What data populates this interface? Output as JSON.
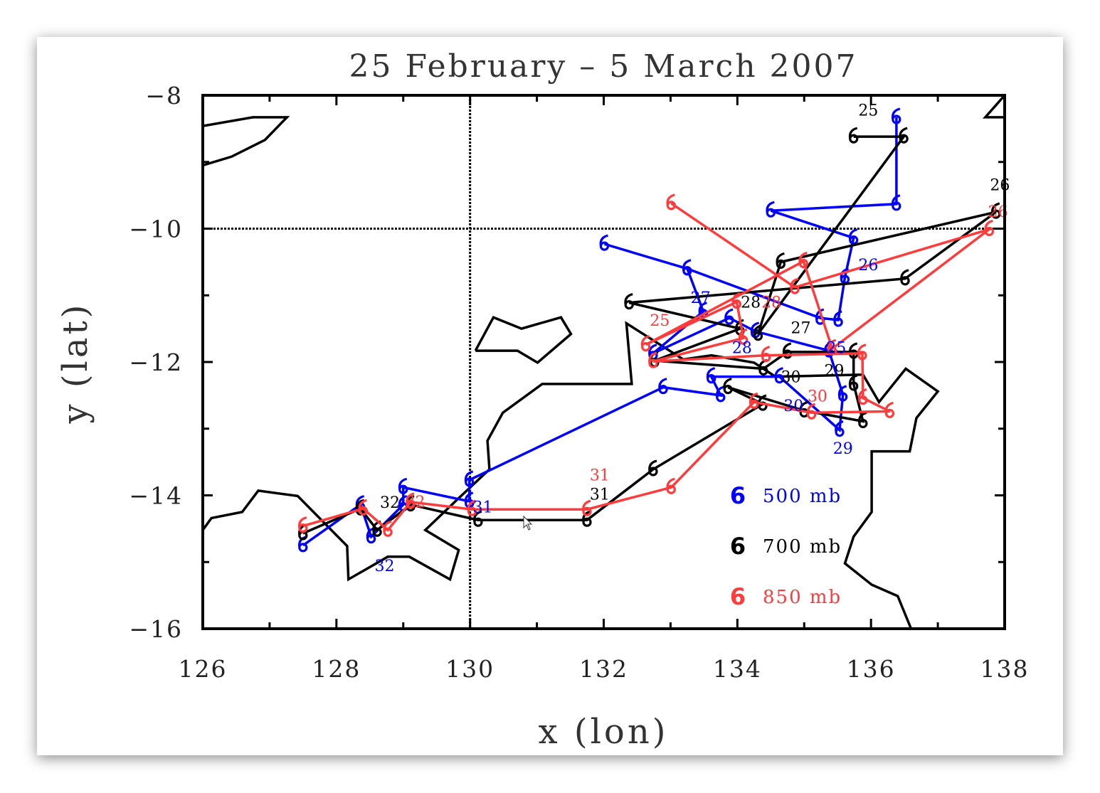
{
  "chart_data": {
    "type": "line",
    "title": "25 February – 5 March 2007",
    "xlabel": "x (lon)",
    "ylabel": "y (lat)",
    "xlim": [
      126,
      138
    ],
    "ylim": [
      -16,
      -8
    ],
    "xticks": [
      126,
      128,
      130,
      132,
      134,
      136,
      138
    ],
    "yticks": [
      -8,
      -10,
      -12,
      -14,
      -16
    ],
    "xtick_labels": [
      "126",
      "128",
      "130",
      "132",
      "134",
      "136",
      "138"
    ],
    "ytick_labels": [
      "−8",
      "−10",
      "−12",
      "−14",
      "−16"
    ],
    "reference_lines": {
      "lon": 130,
      "lat": -10
    },
    "legend_position": "bottom-right",
    "marker_glyph": "6",
    "series": [
      {
        "name": "500 mb",
        "color": "#0000ff",
        "points": [
          [
            136.38,
            -8.33
          ],
          [
            136.38,
            -9.63
          ],
          [
            134.5,
            -9.73
          ],
          [
            135.74,
            -10.14
          ],
          [
            135.61,
            -10.73
          ],
          [
            135.51,
            -11.37
          ],
          [
            135.24,
            -11.34
          ],
          [
            133.25,
            -10.6
          ],
          [
            132.01,
            -10.23
          ],
          [
            133.25,
            -10.6
          ],
          [
            133.49,
            -11.24
          ],
          [
            132.74,
            -11.87
          ],
          [
            133.88,
            -11.34
          ],
          [
            134.27,
            -11.54
          ],
          [
            135.37,
            -11.83
          ],
          [
            135.58,
            -12.49
          ],
          [
            135.53,
            -13.02
          ],
          [
            134.63,
            -12.22
          ],
          [
            133.61,
            -12.22
          ],
          [
            133.75,
            -12.5
          ],
          [
            132.89,
            -12.38
          ],
          [
            129.99,
            -13.77
          ],
          [
            129.99,
            -14.09
          ],
          [
            129.0,
            -13.88
          ],
          [
            129.0,
            -14.14
          ],
          [
            128.52,
            -14.62
          ],
          [
            128.36,
            -14.14
          ],
          [
            127.5,
            -14.75
          ]
        ],
        "labels": [
          {
            "text": "25",
            "lon": 135.48,
            "lat": -11.78
          },
          {
            "text": "26",
            "lon": 135.96,
            "lat": -10.54
          },
          {
            "text": "27",
            "lon": 133.45,
            "lat": -11.03
          },
          {
            "text": "28",
            "lon": 134.07,
            "lat": -11.78
          },
          {
            "text": "29",
            "lon": 135.58,
            "lat": -13.29
          },
          {
            "text": "30",
            "lon": 134.84,
            "lat": -12.65
          },
          {
            "text": "31",
            "lon": 130.19,
            "lat": -14.17
          },
          {
            "text": "32",
            "lon": 128.72,
            "lat": -15.05
          }
        ]
      },
      {
        "name": "700 mb",
        "color": "#000000",
        "points": [
          [
            135.74,
            -8.62
          ],
          [
            136.49,
            -8.62
          ],
          [
            134.31,
            -11.58
          ],
          [
            134.65,
            -10.5
          ],
          [
            137.87,
            -9.75
          ],
          [
            136.51,
            -10.75
          ],
          [
            132.38,
            -11.11
          ],
          [
            134.04,
            -11.5
          ],
          [
            132.76,
            -11.98
          ],
          [
            134.39,
            -12.1
          ],
          [
            134.75,
            -11.85
          ],
          [
            135.74,
            -11.85
          ],
          [
            135.74,
            -12.33
          ],
          [
            135.88,
            -12.89
          ],
          [
            135.0,
            -12.73
          ],
          [
            133.86,
            -12.38
          ],
          [
            134.38,
            -12.63
          ],
          [
            132.74,
            -13.61
          ],
          [
            131.75,
            -14.37
          ],
          [
            130.12,
            -14.37
          ],
          [
            129.11,
            -14.14
          ],
          [
            128.61,
            -14.52
          ],
          [
            128.36,
            -14.2
          ],
          [
            127.5,
            -14.57
          ]
        ],
        "labels": [
          {
            "text": "25",
            "lon": 135.96,
            "lat": -8.22
          },
          {
            "text": "26",
            "lon": 137.93,
            "lat": -9.34
          },
          {
            "text": "27",
            "lon": 134.95,
            "lat": -11.48
          },
          {
            "text": "28",
            "lon": 134.2,
            "lat": -11.1
          },
          {
            "text": "29",
            "lon": 135.45,
            "lat": -12.12
          },
          {
            "text": "30",
            "lon": 134.8,
            "lat": -12.22
          },
          {
            "text": "31",
            "lon": 131.94,
            "lat": -13.98
          },
          {
            "text": "32",
            "lon": 128.8,
            "lat": -14.1
          }
        ]
      },
      {
        "name": "850 mb",
        "color": "#ff3b3b",
        "points": [
          [
            133.01,
            -9.62
          ],
          [
            134.86,
            -10.88
          ],
          [
            137.77,
            -10.01
          ],
          [
            135.42,
            -11.8
          ],
          [
            134.99,
            -10.49
          ],
          [
            132.63,
            -11.74
          ],
          [
            133.99,
            -11.1
          ],
          [
            134.09,
            -11.64
          ],
          [
            132.74,
            -11.99
          ],
          [
            134.43,
            -11.9
          ],
          [
            135.87,
            -11.87
          ],
          [
            135.88,
            -12.54
          ],
          [
            136.28,
            -12.74
          ],
          [
            135.11,
            -12.76
          ],
          [
            134.25,
            -12.6
          ],
          [
            133.01,
            -13.88
          ],
          [
            131.75,
            -14.21
          ],
          [
            130.03,
            -14.21
          ],
          [
            129.11,
            -14.1
          ],
          [
            128.77,
            -14.52
          ],
          [
            128.4,
            -14.2
          ],
          [
            127.5,
            -14.46
          ]
        ],
        "labels": [
          {
            "text": "25",
            "lon": 132.84,
            "lat": -11.37
          },
          {
            "text": "26",
            "lon": 137.9,
            "lat": -9.61
          },
          {
            "text": "28",
            "lon": 134.36,
            "lat": -11.1
          },
          {
            "text": "30",
            "lon": 135.05,
            "lat": -12.38
          },
          {
            "text": "31",
            "lon": 131.94,
            "lat": -13.82
          },
          {
            "text": "32",
            "lon": 128.88,
            "lat": -14.09
          }
        ]
      }
    ],
    "coastlines": [
      [
        [
          126,
          -8.46
        ],
        [
          126.75,
          -8.33
        ],
        [
          127.26,
          -8.33
        ],
        [
          126.93,
          -8.67
        ],
        [
          126.43,
          -8.92
        ],
        [
          126,
          -9.05
        ]
      ],
      [
        [
          130.08,
          -11.83
        ],
        [
          130.35,
          -11.33
        ],
        [
          130.77,
          -11.5
        ],
        [
          131.36,
          -11.33
        ],
        [
          131.51,
          -11.58
        ],
        [
          131.01,
          -12.01
        ],
        [
          130.71,
          -11.83
        ],
        [
          130.08,
          -11.83
        ]
      ],
      [
        [
          126,
          -14.52
        ],
        [
          126.13,
          -14.34
        ],
        [
          126.59,
          -14.25
        ],
        [
          126.83,
          -13.93
        ],
        [
          127.42,
          -14.01
        ],
        [
          128.16,
          -14.76
        ],
        [
          128.18,
          -15.26
        ],
        [
          128.77,
          -14.92
        ],
        [
          129.09,
          -14.92
        ],
        [
          129.7,
          -15.26
        ],
        [
          129.83,
          -14.82
        ],
        [
          129.33,
          -14.52
        ],
        [
          129.78,
          -14.09
        ],
        [
          130.29,
          -13.61
        ],
        [
          130.26,
          -13.18
        ],
        [
          130.49,
          -12.76
        ],
        [
          131.08,
          -12.33
        ],
        [
          132.42,
          -12.33
        ],
        [
          132.34,
          -11.42
        ],
        [
          133.19,
          -11.96
        ],
        [
          133.61,
          -11.9
        ],
        [
          134.25,
          -12.01
        ],
        [
          134.57,
          -12.22
        ],
        [
          135.88,
          -12.19
        ],
        [
          136.12,
          -12.6
        ],
        [
          136.52,
          -12.1
        ],
        [
          137.0,
          -12.44
        ],
        [
          136.68,
          -12.84
        ],
        [
          136.58,
          -13.34
        ],
        [
          136.01,
          -13.34
        ],
        [
          136.01,
          -14.25
        ],
        [
          135.74,
          -14.62
        ],
        [
          135.61,
          -15.02
        ],
        [
          136.01,
          -15.34
        ],
        [
          136.4,
          -15.51
        ],
        [
          136.6,
          -16
        ]
      ],
      [
        [
          138,
          -8.0
        ],
        [
          137.71,
          -8.33
        ],
        [
          138,
          -8.33
        ]
      ]
    ]
  }
}
